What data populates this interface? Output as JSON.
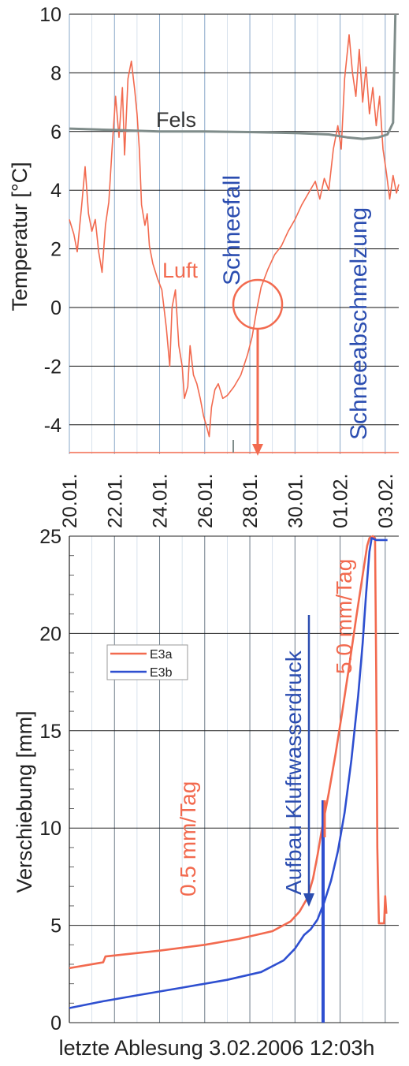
{
  "chart_data": [
    {
      "type": "line",
      "ylabel": "Temperatur [°C]",
      "ylim": [
        -5,
        10
      ],
      "yticks": [
        "10",
        "8",
        "6",
        "4",
        "2",
        "0",
        "-2",
        "-4"
      ],
      "xticks": [
        "20.01.",
        "22.01.",
        "24.01.",
        "26.01.",
        "28.01.",
        "30.01.",
        "01.02.",
        "03.02."
      ],
      "xlim_days": [
        0,
        14.6
      ],
      "grid": true,
      "series": [
        {
          "name": "Luft",
          "color": "#f26a4f",
          "points": [
            [
              0,
              3.0
            ],
            [
              0.2,
              2.5
            ],
            [
              0.35,
              1.9
            ],
            [
              0.55,
              3.5
            ],
            [
              0.7,
              4.8
            ],
            [
              0.85,
              3.2
            ],
            [
              1.0,
              2.6
            ],
            [
              1.15,
              3.0
            ],
            [
              1.3,
              1.9
            ],
            [
              1.45,
              1.2
            ],
            [
              1.6,
              2.8
            ],
            [
              1.75,
              3.6
            ],
            [
              1.9,
              5.5
            ],
            [
              2.05,
              7.2
            ],
            [
              2.2,
              5.8
            ],
            [
              2.35,
              7.5
            ],
            [
              2.45,
              5.2
            ],
            [
              2.6,
              7.8
            ],
            [
              2.75,
              8.4
            ],
            [
              2.9,
              7.4
            ],
            [
              3.0,
              6.6
            ],
            [
              3.1,
              5.4
            ],
            [
              3.2,
              3.5
            ],
            [
              3.35,
              2.8
            ],
            [
              3.45,
              3.2
            ],
            [
              3.55,
              2.1
            ],
            [
              3.7,
              1.5
            ],
            [
              3.9,
              1.0
            ],
            [
              4.1,
              0.6
            ],
            [
              4.3,
              -0.7
            ],
            [
              4.45,
              -2.0
            ],
            [
              4.55,
              0.0
            ],
            [
              4.7,
              0.6
            ],
            [
              4.85,
              -1.3
            ],
            [
              5.0,
              -2.0
            ],
            [
              5.1,
              -3.1
            ],
            [
              5.25,
              -2.7
            ],
            [
              5.35,
              -1.3
            ],
            [
              5.5,
              -2.3
            ],
            [
              5.65,
              -2.6
            ],
            [
              5.8,
              -3.1
            ],
            [
              5.95,
              -3.7
            ],
            [
              6.1,
              -4.1
            ],
            [
              6.2,
              -4.4
            ],
            [
              6.3,
              -3.4
            ],
            [
              6.45,
              -2.8
            ],
            [
              6.6,
              -2.6
            ],
            [
              6.8,
              -3.1
            ],
            [
              7.0,
              -3.0
            ],
            [
              7.3,
              -2.7
            ],
            [
              7.6,
              -2.3
            ],
            [
              7.9,
              -1.6
            ],
            [
              8.1,
              -1.0
            ],
            [
              8.3,
              -0.1
            ],
            [
              8.5,
              0.7
            ],
            [
              8.8,
              1.3
            ],
            [
              9.1,
              1.8
            ],
            [
              9.4,
              2.1
            ],
            [
              9.7,
              2.6
            ],
            [
              10.0,
              3.0
            ],
            [
              10.3,
              3.5
            ],
            [
              10.6,
              3.9
            ],
            [
              10.9,
              4.3
            ],
            [
              11.1,
              3.7
            ],
            [
              11.3,
              4.4
            ],
            [
              11.5,
              4.0
            ],
            [
              11.7,
              5.4
            ],
            [
              11.9,
              6.2
            ],
            [
              12.05,
              5.4
            ],
            [
              12.2,
              7.8
            ],
            [
              12.4,
              9.3
            ],
            [
              12.55,
              8.0
            ],
            [
              12.7,
              7.2
            ],
            [
              12.85,
              8.8
            ],
            [
              13.0,
              7.0
            ],
            [
              13.15,
              8.2
            ],
            [
              13.3,
              6.6
            ],
            [
              13.45,
              7.5
            ],
            [
              13.6,
              6.2
            ],
            [
              13.75,
              7.2
            ],
            [
              13.9,
              5.4
            ],
            [
              14.05,
              4.6
            ],
            [
              14.2,
              3.7
            ],
            [
              14.35,
              4.5
            ],
            [
              14.5,
              3.9
            ],
            [
              14.6,
              4.2
            ]
          ]
        },
        {
          "name": "Fels",
          "color": "#7f8c8a",
          "points": [
            [
              0,
              6.1
            ],
            [
              2,
              6.05
            ],
            [
              4,
              6.0
            ],
            [
              6,
              6.0
            ],
            [
              8,
              5.98
            ],
            [
              10,
              5.95
            ],
            [
              11.5,
              5.9
            ],
            [
              12.3,
              5.8
            ],
            [
              13.0,
              5.75
            ],
            [
              13.7,
              5.8
            ],
            [
              14.1,
              5.9
            ],
            [
              14.35,
              6.3
            ],
            [
              14.45,
              10.0
            ]
          ]
        }
      ],
      "annotations": {
        "fels": "Fels",
        "luft": "Luft",
        "schneefall": "Schneefall",
        "schneeabschmelzung": "Schneeabschmelzung"
      },
      "marker_day": 8.2
    },
    {
      "type": "line",
      "ylabel": "Verschiebung [mm]",
      "xlabel": "letzte Ablesung 3.02.2006   12:03h",
      "ylim": [
        0,
        25
      ],
      "yticks": [
        "25",
        "20",
        "15",
        "10",
        "5",
        "0"
      ],
      "xlim_days": [
        0,
        14.6
      ],
      "grid": true,
      "legend_position": "upper-left",
      "series": [
        {
          "name": "E3a",
          "color": "#f26a4f",
          "points": [
            [
              0,
              2.8
            ],
            [
              1.5,
              3.1
            ],
            [
              1.6,
              3.4
            ],
            [
              4,
              3.7
            ],
            [
              6,
              4.0
            ],
            [
              7.5,
              4.3
            ],
            [
              9.0,
              4.7
            ],
            [
              9.8,
              5.2
            ],
            [
              10.2,
              5.7
            ],
            [
              10.55,
              6.4
            ],
            [
              10.8,
              7.4
            ],
            [
              11.0,
              8.6
            ],
            [
              11.2,
              10.0
            ],
            [
              11.5,
              11.8
            ],
            [
              11.8,
              13.8
            ],
            [
              12.1,
              16.0
            ],
            [
              12.4,
              18.3
            ],
            [
              12.7,
              20.7
            ],
            [
              13.0,
              23.0
            ],
            [
              13.2,
              24.5
            ],
            [
              13.3,
              24.9
            ],
            [
              13.45,
              25.0
            ],
            [
              13.55,
              24.9
            ],
            [
              13.6,
              18.0
            ],
            [
              13.65,
              9.0
            ],
            [
              13.7,
              6.2
            ],
            [
              13.72,
              5.1
            ],
            [
              13.95,
              5.1
            ],
            [
              14.0,
              6.5
            ],
            [
              14.05,
              5.6
            ]
          ]
        },
        {
          "name": "E3b",
          "color": "#2e4fd0",
          "points": [
            [
              0,
              0.75
            ],
            [
              1.5,
              1.1
            ],
            [
              3.0,
              1.4
            ],
            [
              5.0,
              1.8
            ],
            [
              7.0,
              2.2
            ],
            [
              8.5,
              2.6
            ],
            [
              9.5,
              3.2
            ],
            [
              10.0,
              3.8
            ],
            [
              10.4,
              4.5
            ],
            [
              10.7,
              4.8
            ],
            [
              11.0,
              5.3
            ],
            [
              11.3,
              6.2
            ],
            [
              11.6,
              7.3
            ],
            [
              11.9,
              8.8
            ],
            [
              12.2,
              10.8
            ],
            [
              12.5,
              13.5
            ],
            [
              12.8,
              16.8
            ],
            [
              13.0,
              19.5
            ],
            [
              13.15,
              22.0
            ],
            [
              13.3,
              24.2
            ],
            [
              13.4,
              24.9
            ],
            [
              13.6,
              24.8
            ],
            [
              14.0,
              24.8
            ],
            [
              14.1,
              24.8
            ]
          ]
        }
      ],
      "annotations": {
        "rate_low": "0.5 mm/Tag",
        "rate_high": "5.0 mm/Tag",
        "aufbau": "Aufbau Kluftwasserdruck"
      },
      "marker_day": 10.8
    }
  ]
}
